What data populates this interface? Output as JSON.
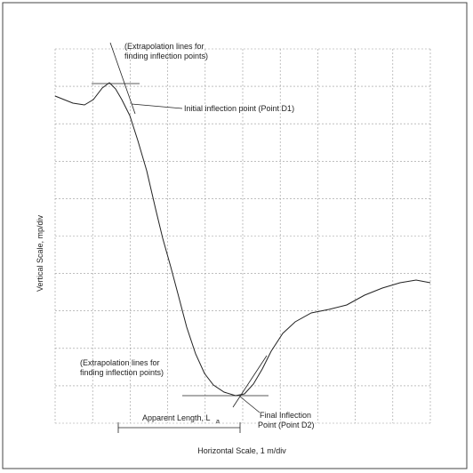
{
  "annotations": {
    "top_extrapolation": [
      "(Extrapolation lines for",
      "finding inflection points)"
    ],
    "initial_point": "Initial inflection point (Point D1)",
    "bottom_extrapolation": [
      "(Extrapolation lines for",
      "finding inflection points)"
    ],
    "final_point": [
      "Final Inflection",
      "Point (Point D2)"
    ],
    "apparent_length": "Apparent Length, L",
    "apparent_length_subscript": "a"
  },
  "axes": {
    "y_label": "Vertical Scale, mp/div",
    "x_label": "Horizontal Scale, 1 m/div"
  }
}
